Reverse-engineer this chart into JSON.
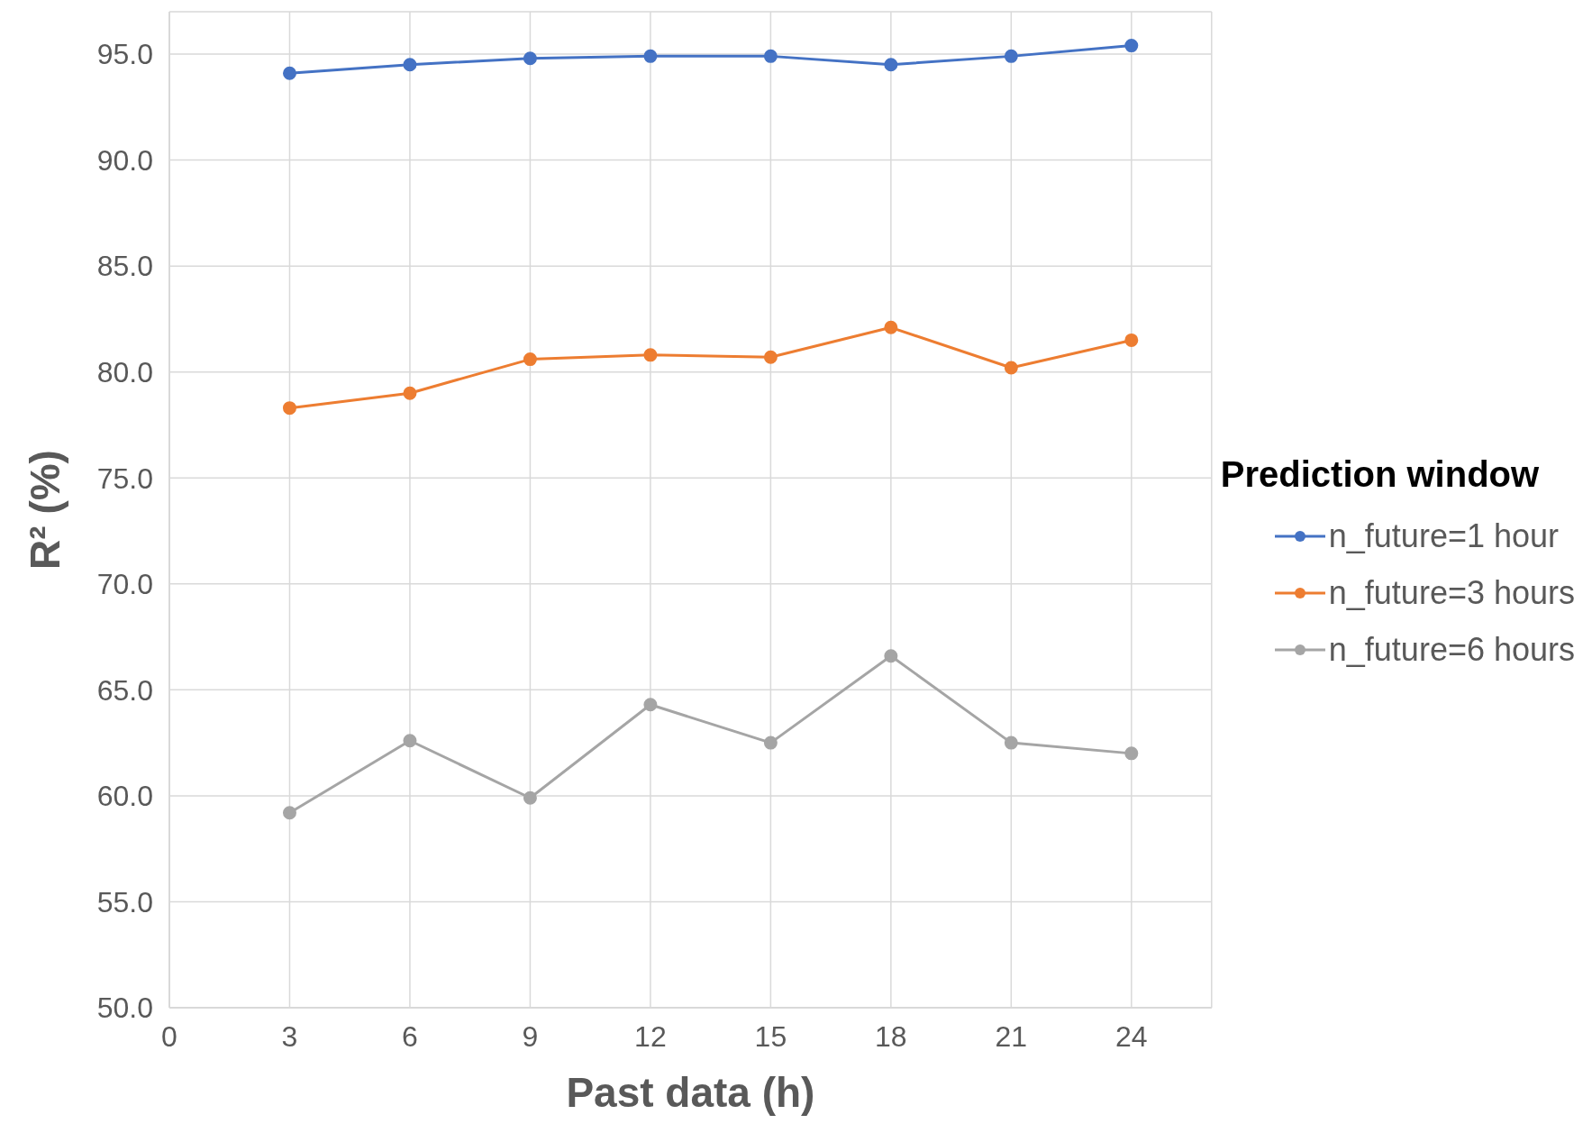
{
  "chart_data": {
    "type": "line",
    "xlabel": "Past data (h)",
    "ylabel": "R² (%)",
    "legend_title": "Prediction window",
    "x": [
      3,
      6,
      9,
      12,
      15,
      18,
      21,
      24
    ],
    "series": [
      {
        "name": "n_future=1 hour",
        "color": "#4472c4",
        "values": [
          94.1,
          94.5,
          94.8,
          94.9,
          94.9,
          94.5,
          94.9,
          95.4
        ]
      },
      {
        "name": "n_future=3 hours",
        "color": "#ed7d31",
        "values": [
          78.3,
          79.0,
          80.6,
          80.8,
          80.7,
          82.1,
          80.2,
          81.5
        ]
      },
      {
        "name": "n_future=6 hours",
        "color": "#a5a5a5",
        "values": [
          59.2,
          62.6,
          59.9,
          64.3,
          62.5,
          66.6,
          62.5,
          62.0
        ]
      }
    ],
    "xlim": [
      0,
      26
    ],
    "xticks": [
      0,
      3,
      6,
      9,
      12,
      15,
      18,
      21,
      24
    ],
    "ylim": [
      50,
      97
    ],
    "yticks": [
      {
        "value": 50,
        "label": "50.0"
      },
      {
        "value": 55,
        "label": "55.0"
      },
      {
        "value": 60,
        "label": "60.0"
      },
      {
        "value": 65,
        "label": "65.0"
      },
      {
        "value": 70,
        "label": "70.0"
      },
      {
        "value": 75,
        "label": "75.0"
      },
      {
        "value": 80,
        "label": "80.0"
      },
      {
        "value": 85,
        "label": "85.0"
      },
      {
        "value": 90,
        "label": "90.0"
      },
      {
        "value": 95,
        "label": "95.0"
      }
    ],
    "grid": true,
    "legend": "right",
    "marker": "circle",
    "line_style": "solid"
  }
}
